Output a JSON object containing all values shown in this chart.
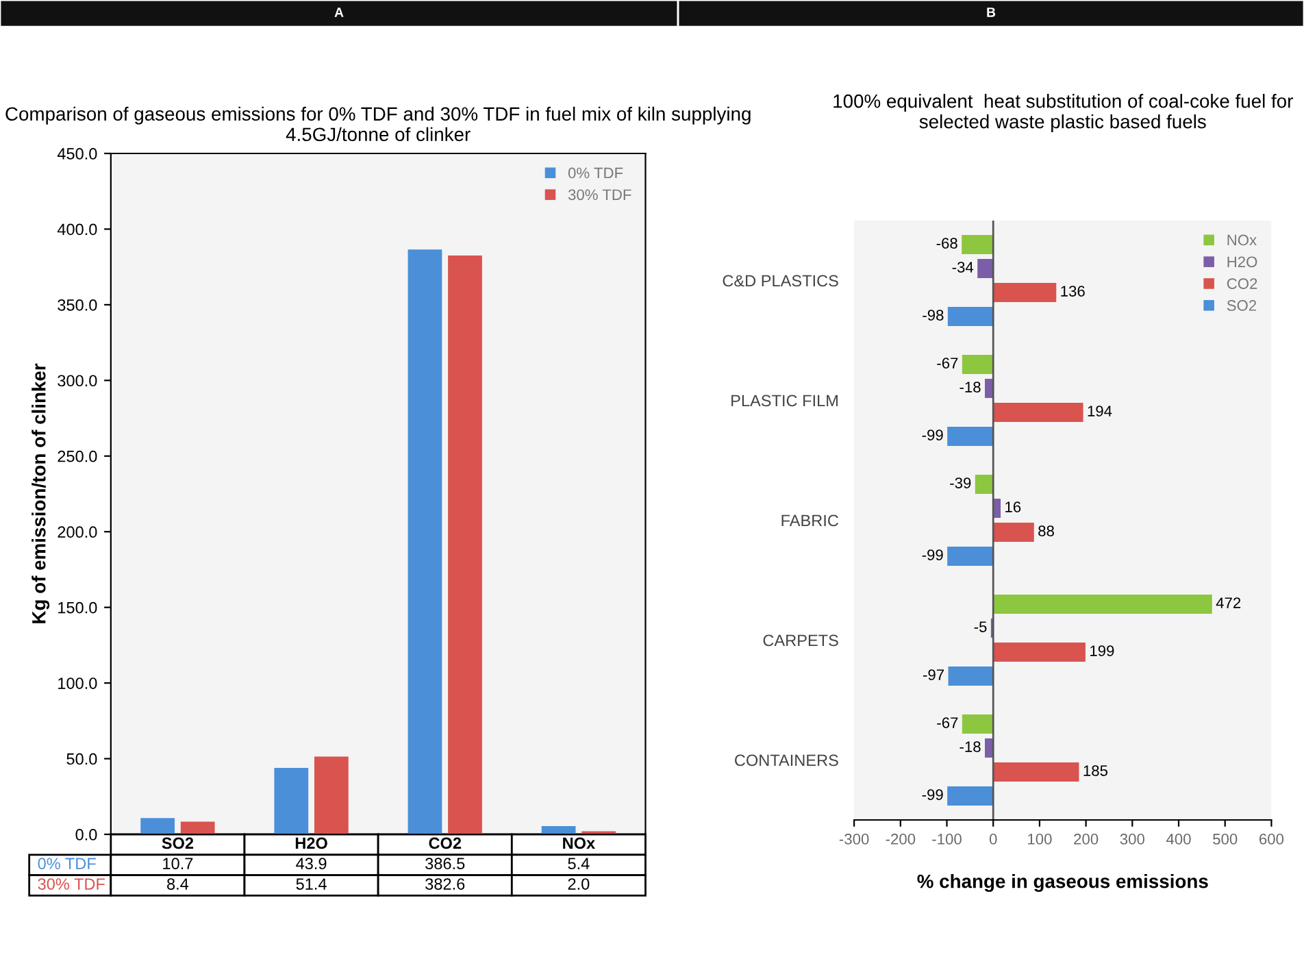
{
  "chart_data": [
    {
      "type": "bar",
      "title": "Comparison of gaseous emissions for 0% TDF and 30% TDF in fuel mix of kiln supplying 4.5GJ/tonne of clinker",
      "annotations": [
        "A"
      ],
      "ylabel": "Kg of emission/ton of clinker",
      "categories": [
        "SO2",
        "H2O",
        "CO2",
        "NOx"
      ],
      "series": [
        {
          "name": "0% TDF",
          "color": "#4a8fd8",
          "values": [
            10.7,
            43.9,
            386.5,
            5.4
          ],
          "value_labels": [
            "10.7",
            "43.9",
            "386.5",
            "5.4"
          ]
        },
        {
          "name": "30% TDF",
          "color": "#d9534f",
          "values": [
            8.4,
            51.4,
            382.6,
            2.0
          ],
          "value_labels": [
            "8.4",
            "51.4",
            "382.6",
            "2.0"
          ]
        }
      ],
      "ylim": [
        0,
        450
      ],
      "yticks": [
        {
          "value": 0,
          "label": "0.0"
        },
        {
          "value": 50,
          "label": "50.0"
        },
        {
          "value": 100,
          "label": "100.0"
        },
        {
          "value": 150,
          "label": "150.0"
        },
        {
          "value": 200,
          "label": "200.0"
        },
        {
          "value": 250,
          "label": "250.0"
        },
        {
          "value": 300,
          "label": "300.0"
        },
        {
          "value": 350,
          "label": "350.0"
        },
        {
          "value": 400,
          "label": "400.0"
        },
        {
          "value": 450,
          "label": "450.0"
        }
      ],
      "legend": "top right",
      "grid": false
    },
    {
      "type": "bar",
      "orientation": "horizontal",
      "title": "100% equivalent  heat substitution of coal-coke fuel for selected waste plastic based fuels",
      "annotations": [
        "B"
      ],
      "xlabel": "% change in gaseous emissions",
      "categories": [
        "C&D PLASTICS",
        "PLASTIC FILM",
        "FABRIC",
        "CARPETS",
        "CONTAINERS"
      ],
      "series": [
        {
          "name": "NOx",
          "color": "#8dc63f",
          "values": [
            -68,
            -67,
            -39,
            472,
            -67
          ]
        },
        {
          "name": "H2O",
          "color": "#7b5ea7",
          "values": [
            -34,
            -18,
            16,
            -5,
            -18
          ]
        },
        {
          "name": "CO2",
          "color": "#d9534f",
          "values": [
            136,
            194,
            88,
            199,
            185
          ]
        },
        {
          "name": "SO2",
          "color": "#4a8fd8",
          "values": [
            -98,
            -99,
            -99,
            -97,
            -99
          ]
        }
      ],
      "xlim": [
        -300,
        600
      ],
      "xticks": [
        -300,
        -200,
        -100,
        0,
        100,
        200,
        300,
        400,
        500,
        600
      ],
      "ref_lines": [
        {
          "axis": "x",
          "value": 0,
          "color": "#555555"
        }
      ],
      "data_labels": true,
      "legend": "top right",
      "grid": false
    }
  ]
}
